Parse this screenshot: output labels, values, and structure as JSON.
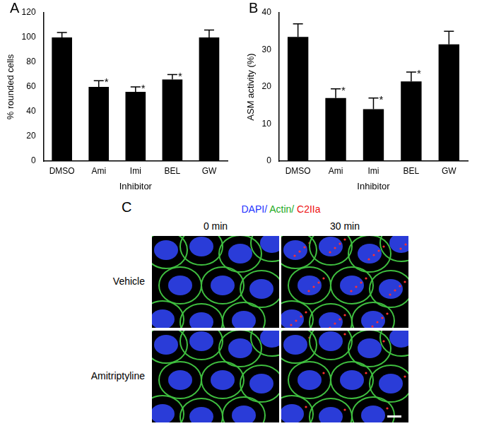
{
  "chart_data": [
    {
      "panel": "A",
      "type": "bar",
      "categories": [
        "DMSO",
        "Ami",
        "Imi",
        "BEL",
        "GW"
      ],
      "values": [
        100,
        60,
        56,
        66,
        100
      ],
      "errors": [
        4,
        5,
        4,
        4,
        6
      ],
      "annotations": [
        {
          "category": "Ami",
          "text": "*"
        },
        {
          "category": "Imi",
          "text": "*"
        },
        {
          "category": "BEL",
          "text": "*"
        }
      ],
      "color": "#000000",
      "y_label": "% rounded cells",
      "x_label": "Inhibitor",
      "ylim": [
        0,
        120
      ],
      "yticks": [
        0,
        20,
        40,
        60,
        80,
        100,
        120
      ],
      "grid": false
    },
    {
      "panel": "B",
      "type": "bar",
      "categories": [
        "DMSO",
        "Ami",
        "Imi",
        "BEL",
        "GW"
      ],
      "values": [
        33.5,
        17,
        14,
        21.5,
        31.5
      ],
      "errors": [
        3.5,
        2.5,
        3,
        2.5,
        3.5
      ],
      "annotations": [
        {
          "category": "Ami",
          "text": "*"
        },
        {
          "category": "Imi",
          "text": "*"
        },
        {
          "category": "BEL",
          "text": "*"
        }
      ],
      "color": "#000000",
      "y_label": "ASM activity (%)",
      "x_label": "Inhibitor",
      "ylim": [
        0,
        40
      ],
      "yticks": [
        0,
        10,
        20,
        30,
        40
      ],
      "grid": false
    }
  ],
  "image_panel": {
    "panel": "C",
    "channels": [
      {
        "text": "DAPI/",
        "color": "#2233ff"
      },
      {
        "text": "Actin/",
        "color": "#22aa22"
      },
      {
        "text": "C2IIa",
        "color": "#ee1111"
      }
    ],
    "columns": [
      "0 min",
      "30 min"
    ],
    "rows": [
      "Vehicle",
      "Amitriptyline"
    ]
  }
}
